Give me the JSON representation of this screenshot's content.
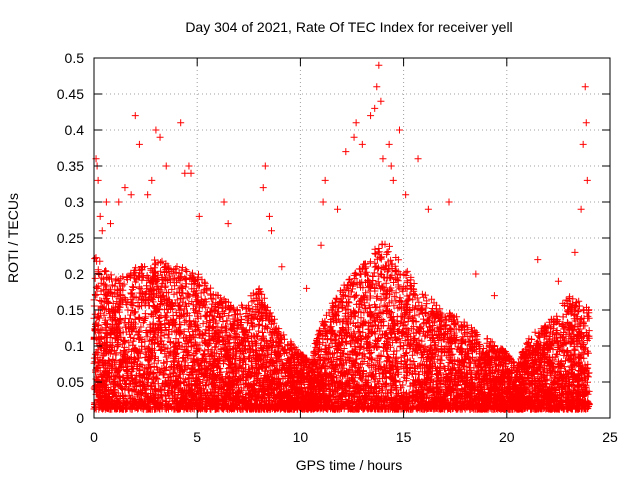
{
  "chart_data": {
    "type": "scatter",
    "title": "Day 304 of 2021, Rate Of TEC Index for receiver yell",
    "xlabel": "GPS time / hours",
    "ylabel": "ROTI / TECUs",
    "xlim": [
      0,
      25
    ],
    "ylim": [
      0,
      0.5
    ],
    "xticks": [
      0,
      5,
      10,
      15,
      20,
      25
    ],
    "yticks": [
      0,
      0.05,
      0.1,
      0.15,
      0.2,
      0.25,
      0.3,
      0.35,
      0.4,
      0.45,
      0.5
    ],
    "ytick_labels": [
      "0",
      "0.05",
      "0.1",
      "0.15",
      "0.2",
      "0.25",
      "0.3",
      "0.35",
      "0.4",
      "0.45",
      "0.5"
    ],
    "grid": true,
    "marker": "plus",
    "point_color": "#ff0000",
    "series": [
      {
        "values": [
          [
            0.1,
            0.36
          ],
          [
            0.15,
            0.35
          ],
          [
            0.2,
            0.33
          ],
          [
            0.3,
            0.28
          ],
          [
            0.4,
            0.26
          ],
          [
            0.6,
            0.3
          ],
          [
            0.8,
            0.27
          ],
          [
            1.2,
            0.3
          ],
          [
            1.5,
            0.32
          ],
          [
            1.8,
            0.31
          ],
          [
            2.0,
            0.42
          ],
          [
            2.2,
            0.38
          ],
          [
            2.6,
            0.31
          ],
          [
            2.8,
            0.33
          ],
          [
            3.0,
            0.4
          ],
          [
            3.2,
            0.39
          ],
          [
            3.5,
            0.35
          ],
          [
            4.2,
            0.41
          ],
          [
            4.4,
            0.34
          ],
          [
            4.6,
            0.35
          ],
          [
            4.7,
            0.34
          ],
          [
            5.1,
            0.28
          ],
          [
            6.3,
            0.3
          ],
          [
            6.5,
            0.27
          ],
          [
            8.2,
            0.32
          ],
          [
            8.3,
            0.35
          ],
          [
            8.5,
            0.28
          ],
          [
            8.6,
            0.26
          ],
          [
            9.1,
            0.21
          ],
          [
            10.3,
            0.18
          ],
          [
            11.0,
            0.24
          ],
          [
            11.1,
            0.3
          ],
          [
            11.2,
            0.33
          ],
          [
            11.8,
            0.29
          ],
          [
            12.2,
            0.37
          ],
          [
            12.6,
            0.39
          ],
          [
            12.7,
            0.41
          ],
          [
            13.0,
            0.38
          ],
          [
            13.4,
            0.42
          ],
          [
            13.6,
            0.43
          ],
          [
            13.7,
            0.46
          ],
          [
            13.8,
            0.49
          ],
          [
            13.9,
            0.44
          ],
          [
            14.0,
            0.36
          ],
          [
            14.3,
            0.38
          ],
          [
            14.4,
            0.35
          ],
          [
            14.5,
            0.33
          ],
          [
            14.8,
            0.4
          ],
          [
            15.1,
            0.31
          ],
          [
            15.7,
            0.36
          ],
          [
            16.2,
            0.29
          ],
          [
            17.2,
            0.3
          ],
          [
            18.5,
            0.2
          ],
          [
            19.4,
            0.17
          ],
          [
            21.5,
            0.22
          ],
          [
            22.5,
            0.19
          ],
          [
            23.3,
            0.23
          ],
          [
            23.6,
            0.29
          ],
          [
            23.7,
            0.38
          ],
          [
            23.8,
            0.46
          ],
          [
            23.85,
            0.41
          ],
          [
            23.9,
            0.33
          ]
        ]
      }
    ]
  }
}
